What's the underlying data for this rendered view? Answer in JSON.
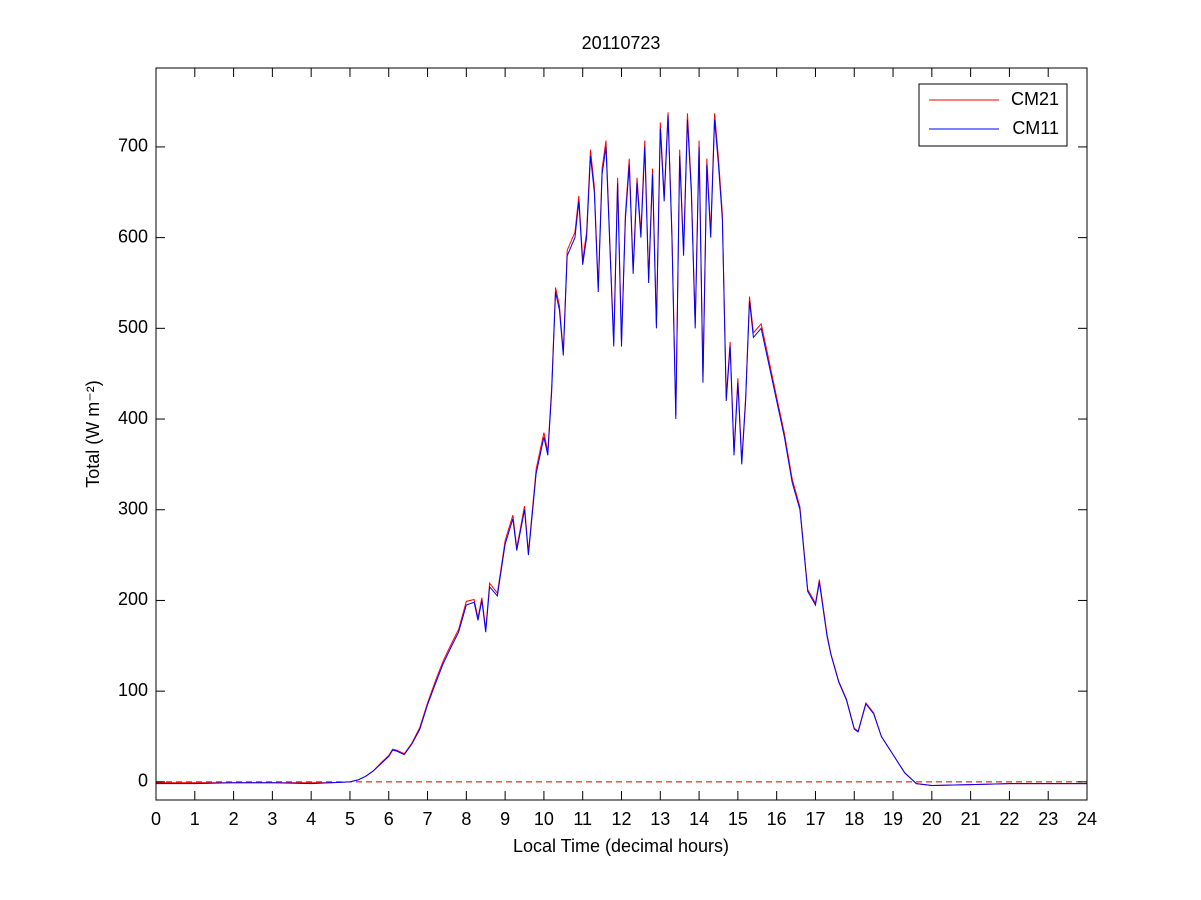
{
  "chart_data": {
    "type": "line",
    "title": "20110723",
    "xlabel": "Local Time (decimal hours)",
    "ylabel": "Total (W m⁻²)",
    "x": [
      0,
      1,
      2,
      3,
      4,
      4.5,
      5,
      5.2,
      5.4,
      5.6,
      5.8,
      6,
      6.1,
      6.2,
      6.4,
      6.6,
      6.8,
      7,
      7.2,
      7.4,
      7.6,
      7.8,
      8,
      8.2,
      8.3,
      8.4,
      8.5,
      8.6,
      8.8,
      9,
      9.2,
      9.3,
      9.5,
      9.6,
      9.8,
      10,
      10.1,
      10.2,
      10.3,
      10.4,
      10.5,
      10.6,
      10.8,
      10.9,
      11,
      11.1,
      11.2,
      11.3,
      11.4,
      11.5,
      11.6,
      11.7,
      11.8,
      11.9,
      12,
      12.1,
      12.2,
      12.3,
      12.4,
      12.5,
      12.6,
      12.7,
      12.8,
      12.9,
      13,
      13.1,
      13.2,
      13.3,
      13.4,
      13.5,
      13.6,
      13.7,
      13.8,
      13.9,
      14,
      14.1,
      14.2,
      14.3,
      14.4,
      14.5,
      14.6,
      14.7,
      14.8,
      14.9,
      15,
      15.1,
      15.2,
      15.3,
      15.4,
      15.6,
      15.8,
      16,
      16.2,
      16.4,
      16.6,
      16.8,
      17,
      17.1,
      17.3,
      17.4,
      17.6,
      17.8,
      18,
      18.1,
      18.3,
      18.5,
      18.7,
      19,
      19.3,
      19.6,
      20,
      21,
      22,
      23,
      24
    ],
    "series": [
      {
        "name": "CM21",
        "color": "#ff0000",
        "values": [
          -1,
          -1,
          -1,
          -1,
          -1,
          -1,
          0,
          2,
          6,
          12,
          21,
          29,
          36,
          35,
          31,
          43,
          60,
          87,
          111,
          133,
          151,
          168,
          199,
          201,
          181,
          203,
          168,
          219,
          208,
          266,
          294,
          258,
          304,
          253,
          345,
          385,
          364,
          435,
          545,
          525,
          474,
          586,
          606,
          646,
          575,
          606,
          697,
          656,
          545,
          676,
          707,
          595,
          485,
          666,
          485,
          626,
          687,
          565,
          666,
          606,
          707,
          555,
          676,
          505,
          727,
          646,
          738,
          606,
          404,
          697,
          585,
          737,
          656,
          505,
          707,
          445,
          687,
          606,
          737,
          687,
          626,
          424,
          485,
          364,
          445,
          354,
          424,
          535,
          495,
          505,
          465,
          424,
          384,
          334,
          303,
          212,
          197,
          223,
          162,
          141,
          111,
          91,
          59,
          56,
          87,
          76,
          50,
          30,
          10,
          -2,
          -4,
          -3,
          -2,
          -2,
          -2
        ]
      },
      {
        "name": "CM11",
        "color": "#0000ff",
        "values": [
          -2,
          -2,
          -1,
          -1,
          -2,
          -1,
          0,
          2,
          6,
          12,
          20,
          28,
          35,
          34,
          30,
          42,
          58,
          85,
          108,
          130,
          148,
          165,
          195,
          198,
          178,
          200,
          165,
          215,
          205,
          262,
          290,
          255,
          300,
          250,
          340,
          380,
          360,
          430,
          540,
          520,
          470,
          580,
          600,
          640,
          570,
          600,
          690,
          650,
          540,
          670,
          700,
          590,
          480,
          660,
          480,
          620,
          680,
          560,
          660,
          600,
          700,
          550,
          670,
          500,
          720,
          640,
          735,
          600,
          400,
          690,
          580,
          730,
          650,
          500,
          700,
          440,
          680,
          600,
          730,
          680,
          620,
          420,
          480,
          360,
          440,
          350,
          420,
          530,
          490,
          500,
          460,
          420,
          380,
          330,
          300,
          210,
          195,
          220,
          160,
          140,
          110,
          90,
          58,
          55,
          86,
          75,
          50,
          30,
          10,
          -2,
          -4,
          -3,
          -2,
          -2,
          -2
        ]
      }
    ],
    "reference_line": {
      "value": 0,
      "color": "#cc0000"
    },
    "xlim": [
      0,
      24
    ],
    "xticks": [
      0,
      1,
      2,
      3,
      4,
      5,
      6,
      7,
      8,
      9,
      10,
      11,
      12,
      13,
      14,
      15,
      16,
      17,
      18,
      19,
      20,
      21,
      22,
      23,
      24
    ],
    "ylim": [
      -20,
      787
    ],
    "yticks": [
      0,
      100,
      200,
      300,
      400,
      500,
      600,
      700
    ],
    "legend": "upper right"
  }
}
